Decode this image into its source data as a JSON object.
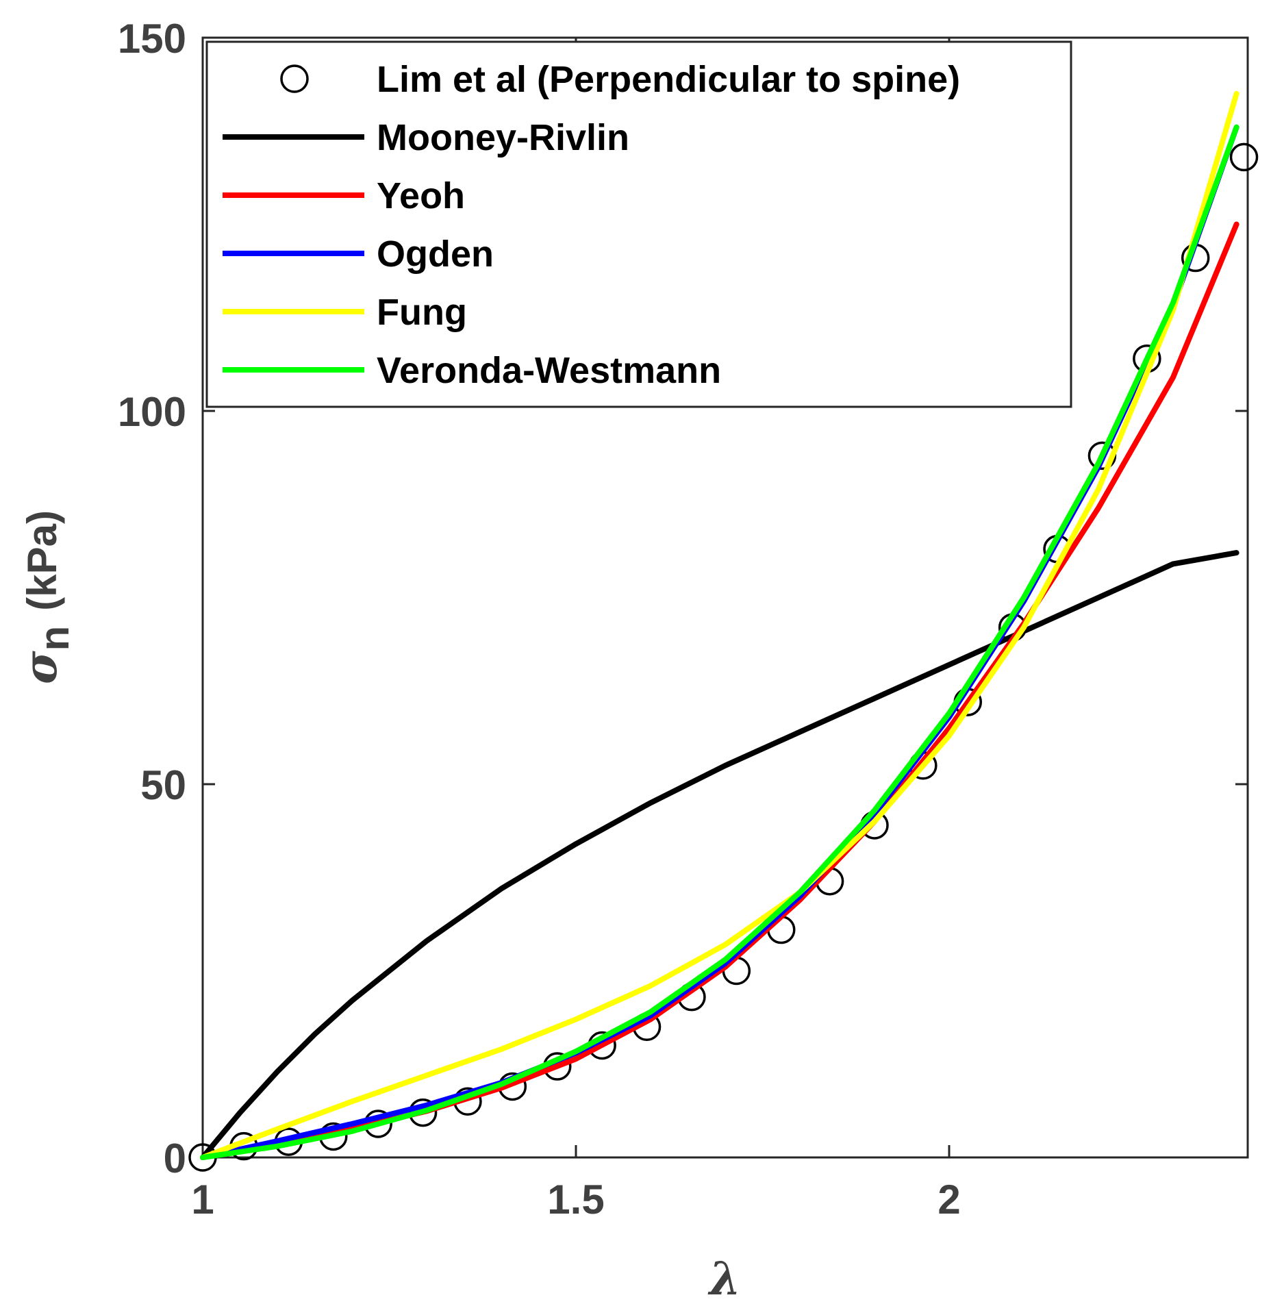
{
  "chart_data": {
    "type": "line",
    "xlabel": "λ",
    "ylabel_symbol": "σ",
    "ylabel_subscript": "n",
    "ylabel_unit": "(kPa)",
    "xlim": [
      1,
      2.4
    ],
    "ylim": [
      0,
      150
    ],
    "xticks": [
      1,
      1.5,
      2
    ],
    "xtick_labels": [
      "1",
      "1.5",
      "2"
    ],
    "yticks": [
      0,
      50,
      100,
      150
    ],
    "ytick_labels": [
      "0",
      "50",
      "100",
      "150"
    ],
    "grid": false,
    "legend_position": "top-left",
    "series": [
      {
        "name": "Lim et al (Perpendicular to spine)",
        "kind": "markers",
        "marker": "circle-open",
        "color": "#000000",
        "x": [
          1.0,
          1.055,
          1.115,
          1.175,
          1.235,
          1.295,
          1.355,
          1.415,
          1.475,
          1.535,
          1.595,
          1.655,
          1.715,
          1.775,
          1.84,
          1.9,
          1.965,
          2.025,
          2.085,
          2.145,
          2.205,
          2.265,
          2.33,
          2.395
        ],
        "y": [
          0,
          1.5,
          2.1,
          2.8,
          4.5,
          6.0,
          7.5,
          9.5,
          12.2,
          15.0,
          17.5,
          21.5,
          25.0,
          30.5,
          37.0,
          44.5,
          52.5,
          61.0,
          71.0,
          81.5,
          94.0,
          107.0,
          120.5,
          134.0
        ]
      },
      {
        "name": "Mooney-Rivlin",
        "kind": "line",
        "color": "#000000",
        "x": [
          1.0,
          1.05,
          1.1,
          1.15,
          1.2,
          1.3,
          1.4,
          1.5,
          1.6,
          1.7,
          1.8,
          1.9,
          2.0,
          2.1,
          2.2,
          2.3,
          2.385
        ],
        "y": [
          0,
          6.0,
          11.5,
          16.5,
          21.0,
          29.0,
          36.0,
          42.0,
          47.5,
          52.5,
          57.0,
          61.5,
          66.0,
          70.5,
          75.0,
          79.5,
          81.0
        ]
      },
      {
        "name": "Yeoh",
        "kind": "line",
        "color": "#ff0000",
        "x": [
          1.0,
          1.1,
          1.2,
          1.3,
          1.4,
          1.5,
          1.6,
          1.7,
          1.8,
          1.9,
          2.0,
          2.1,
          2.2,
          2.3,
          2.385
        ],
        "y": [
          0,
          1.8,
          3.8,
          6.2,
          9.3,
          13.2,
          18.5,
          25.5,
          34.5,
          45.0,
          57.5,
          71.5,
          87.0,
          104.5,
          125.0
        ]
      },
      {
        "name": "Ogden",
        "kind": "line",
        "color": "#0000ff",
        "x": [
          1.0,
          1.1,
          1.2,
          1.3,
          1.4,
          1.5,
          1.6,
          1.7,
          1.8,
          1.9,
          2.0,
          2.1,
          2.2,
          2.3,
          2.385
        ],
        "y": [
          0,
          2.2,
          4.5,
          7.0,
          10.0,
          14.0,
          19.0,
          26.0,
          35.0,
          46.0,
          59.0,
          74.5,
          92.5,
          114.0,
          138.0
        ]
      },
      {
        "name": "Fung",
        "kind": "line",
        "color": "#ffff00",
        "x": [
          1.0,
          1.1,
          1.2,
          1.3,
          1.4,
          1.5,
          1.6,
          1.7,
          1.8,
          1.9,
          2.0,
          2.1,
          2.2,
          2.3,
          2.385
        ],
        "y": [
          0,
          3.8,
          7.5,
          11.0,
          14.5,
          18.5,
          23.0,
          28.5,
          35.5,
          45.0,
          56.5,
          71.0,
          89.5,
          113.5,
          142.5
        ]
      },
      {
        "name": "Veronda-Westmann",
        "kind": "line",
        "color": "#00ff00",
        "x": [
          1.0,
          1.1,
          1.2,
          1.3,
          1.4,
          1.5,
          1.6,
          1.7,
          1.8,
          1.9,
          2.0,
          2.1,
          2.2,
          2.3,
          2.385
        ],
        "y": [
          0,
          1.5,
          3.5,
          6.3,
          9.8,
          14.2,
          19.5,
          26.5,
          35.5,
          46.5,
          59.5,
          75.0,
          93.0,
          114.5,
          138.0
        ]
      }
    ]
  }
}
